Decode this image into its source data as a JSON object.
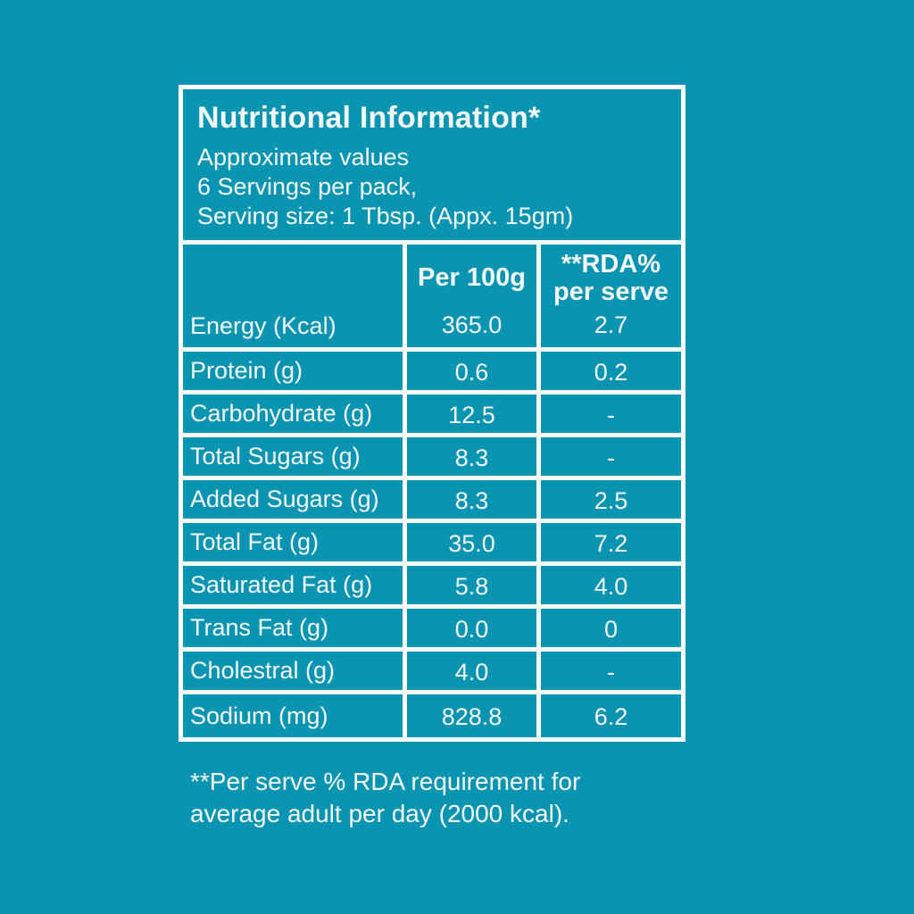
{
  "page": {
    "background_color": "#0995b2",
    "line_color": "#ffffff",
    "text_color": "#f4f7f7"
  },
  "label": {
    "title": "Nutritional Information*",
    "subtitle_lines": {
      "line1": "Approximate values",
      "line2": "6 Servings per pack,",
      "line3": "Serving size: 1 Tbsp. (Appx. 15gm)"
    }
  },
  "table": {
    "col_headers": {
      "per100g": "Per 100g",
      "rda_line1": "**RDA%",
      "rda_line2": "per serve"
    },
    "rows": [
      {
        "label": "Energy (Kcal)",
        "per100g": "365.0",
        "rda": "2.7"
      },
      {
        "label": "Protein (g)",
        "per100g": "0.6",
        "rda": "0.2"
      },
      {
        "label": "Carbohydrate (g)",
        "per100g": "12.5",
        "rda": "-"
      },
      {
        "label": "Total Sugars (g)",
        "per100g": "8.3",
        "rda": "-"
      },
      {
        "label": "Added Sugars (g)",
        "per100g": "8.3",
        "rda": "2.5"
      },
      {
        "label": "Total Fat (g)",
        "per100g": "35.0",
        "rda": "7.2"
      },
      {
        "label": "Saturated Fat (g)",
        "per100g": "5.8",
        "rda": "4.0"
      },
      {
        "label": "Trans Fat (g)",
        "per100g": "0.0",
        "rda": "0"
      },
      {
        "label": "Cholestral (g)",
        "per100g": "4.0",
        "rda": "-"
      },
      {
        "label": "Sodium (mg)",
        "per100g": "828.8",
        "rda": "6.2"
      }
    ]
  },
  "footnote": {
    "line1": "**Per serve % RDA requirement for",
    "line2": "average adult per day (2000 kcal)."
  }
}
